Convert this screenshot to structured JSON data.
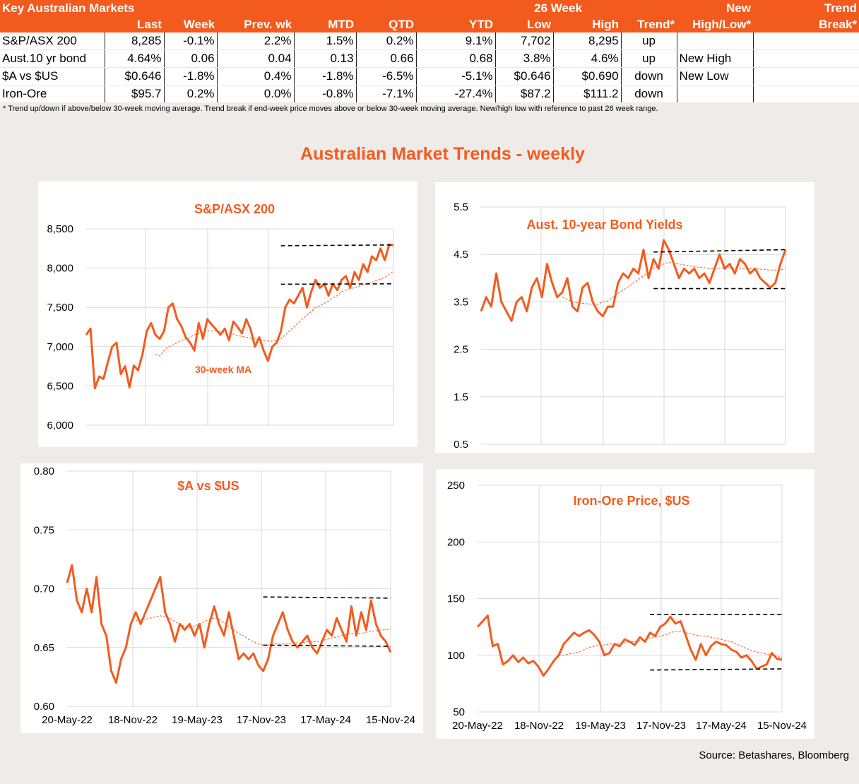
{
  "table": {
    "header1": {
      "title": "Key Australian Markets",
      "week26": "26 Week",
      "new": "New",
      "trend": "Trend"
    },
    "header2": [
      "Last",
      "Week",
      "Prev. wk",
      "MTD",
      "QTD",
      "YTD",
      "Low",
      "High",
      "Trend*",
      "High/Low*",
      "Break*"
    ],
    "rows": [
      {
        "name": "S&P/ASX 200",
        "last": "8,285",
        "week": "-0.1%",
        "prev": "2.2%",
        "mtd": "1.5%",
        "qtd": "0.2%",
        "ytd": "9.1%",
        "low": "7,702",
        "high": "8,295",
        "trend": "up",
        "hl": "",
        "brk": ""
      },
      {
        "name": "Aust.10 yr bond",
        "last": "4.64%",
        "week": "0.06",
        "prev": "0.04",
        "mtd": "0.13",
        "qtd": "0.66",
        "ytd": "0.68",
        "low": "3.8%",
        "high": "4.6%",
        "trend": "up",
        "hl": "New High",
        "brk": ""
      },
      {
        "name": "$A vs $US",
        "last": "$0.646",
        "week": "-1.8%",
        "prev": "0.4%",
        "mtd": "-1.8%",
        "qtd": "-6.5%",
        "ytd": "-5.1%",
        "low": "$0.646",
        "high": "$0.690",
        "trend": "down",
        "hl": "New Low",
        "brk": ""
      },
      {
        "name": "Iron-Ore",
        "last": "$95.7",
        "week": "0.2%",
        "prev": "0.0%",
        "mtd": "-0.8%",
        "qtd": "-7.1%",
        "ytd": "-27.4%",
        "low": "$87.2",
        "high": "$111.2",
        "trend": "down",
        "hl": "",
        "brk": ""
      }
    ],
    "footnote": "*  Trend up/down if above/below 30-week moving average. Trend break if end-week price moves above or below 30-week moving average.  New/high low with reference to past 26 week range."
  },
  "main_title": "Australian Market Trends - weekly",
  "source": "Source:  Betashares, Bloomberg",
  "colors": {
    "accent": "#f35b1e",
    "grid": "#d9d9d9",
    "band": "#000000"
  },
  "chart_data": [
    {
      "type": "line",
      "title": "S&P/ASX 200",
      "x_ticks": [],
      "ylim": [
        6000,
        8500
      ],
      "y_ticks": [
        "6,000",
        "6,500",
        "7,000",
        "7,500",
        "8,000",
        "8,500"
      ],
      "annotation": "30-week MA",
      "series": [
        {
          "style": "solid",
          "values": [
            7150,
            7230,
            6470,
            6620,
            6590,
            6800,
            7000,
            7050,
            6650,
            6750,
            6480,
            6760,
            6700,
            6900,
            7200,
            7300,
            7150,
            7100,
            7200,
            7500,
            7550,
            7350,
            7260,
            7120,
            7050,
            6950,
            7300,
            7100,
            7350,
            7280,
            7220,
            7150,
            7230,
            7080,
            7320,
            7250,
            7170,
            7350,
            7220,
            7000,
            7120,
            6950,
            6820,
            7000,
            7050,
            7200,
            7500,
            7600,
            7550,
            7650,
            7750,
            7500,
            7700,
            7850,
            7750,
            7800,
            7650,
            7800,
            7720,
            7850,
            7900,
            7750,
            7950,
            7850,
            8050,
            7950,
            8150,
            8100,
            8250,
            8100,
            8300,
            8290
          ]
        },
        {
          "style": "dashed",
          "values": [
            null,
            null,
            null,
            null,
            null,
            null,
            null,
            null,
            null,
            null,
            null,
            null,
            null,
            null,
            null,
            null,
            6900,
            6880,
            6950,
            7000,
            7020,
            7050,
            7080,
            7100,
            7120,
            7150,
            7170,
            7180,
            7200,
            7200,
            7200,
            7190,
            7180,
            7170,
            7160,
            7140,
            7130,
            7120,
            7110,
            7100,
            7090,
            7080,
            7070,
            7070,
            7080,
            7100,
            7150,
            7200,
            7250,
            7300,
            7350,
            7400,
            7450,
            7500,
            7520,
            7550,
            7580,
            7620,
            7650,
            7700,
            7720,
            7740,
            7750,
            7770,
            7790,
            7800,
            7820,
            7840,
            7860,
            7880,
            7920,
            7960
          ]
        }
      ],
      "bands": [
        [
          8285,
          8295
        ],
        [
          7795,
          7800
        ]
      ]
    },
    {
      "type": "line",
      "title": "Aust. 10-year Bond Yields",
      "ylim": [
        0.5,
        5.5
      ],
      "y_ticks": [
        "0.5",
        "1.5",
        "2.5",
        "3.5",
        "4.5",
        "5.5"
      ],
      "series": [
        {
          "style": "solid",
          "values": [
            3.3,
            3.6,
            3.4,
            4.1,
            3.5,
            3.3,
            3.1,
            3.5,
            3.6,
            3.3,
            3.8,
            4.0,
            3.6,
            4.3,
            3.9,
            3.6,
            3.7,
            4.0,
            3.4,
            3.3,
            3.8,
            3.9,
            3.5,
            3.3,
            3.2,
            3.4,
            3.4,
            3.9,
            4.1,
            4.0,
            4.2,
            4.1,
            4.6,
            4.0,
            4.4,
            4.2,
            4.8,
            4.6,
            4.3,
            4.0,
            4.2,
            4.1,
            4.2,
            4.0,
            4.1,
            3.9,
            4.2,
            4.5,
            4.2,
            4.3,
            4.1,
            4.4,
            4.3,
            4.1,
            4.2,
            4.0,
            3.9,
            3.8,
            3.9,
            4.3,
            4.6
          ]
        },
        {
          "style": "dashed",
          "values": [
            null,
            null,
            null,
            null,
            null,
            null,
            null,
            null,
            null,
            null,
            null,
            null,
            null,
            null,
            null,
            null,
            3.6,
            3.55,
            3.5,
            3.48,
            3.47,
            3.46,
            3.45,
            3.45,
            3.5,
            3.52,
            3.6,
            3.68,
            3.75,
            3.82,
            3.9,
            3.97,
            4.05,
            4.12,
            4.2,
            4.25,
            4.3,
            4.33,
            4.32,
            4.3,
            4.28,
            4.26,
            4.24,
            4.23,
            4.22,
            4.2,
            4.2,
            4.21,
            4.22,
            4.22,
            4.21,
            4.21,
            4.2,
            4.2,
            4.2,
            4.19,
            4.18,
            4.17,
            4.17,
            4.18,
            4.2
          ]
        }
      ],
      "bands": [
        [
          4.55,
          4.6
        ],
        [
          3.78,
          3.78
        ]
      ]
    },
    {
      "type": "line",
      "title": "$A vs $US",
      "x_ticks": [
        "20-May-22",
        "18-Nov-22",
        "19-May-23",
        "17-Nov-23",
        "17-May-24",
        "15-Nov-24"
      ],
      "ylim": [
        0.6,
        0.8
      ],
      "y_ticks": [
        "0.60",
        "0.65",
        "0.70",
        "0.75",
        "0.80"
      ],
      "series": [
        {
          "style": "solid",
          "values": [
            0.705,
            0.72,
            0.69,
            0.68,
            0.7,
            0.68,
            0.71,
            0.67,
            0.66,
            0.63,
            0.62,
            0.64,
            0.65,
            0.67,
            0.68,
            0.67,
            0.68,
            0.69,
            0.7,
            0.71,
            0.68,
            0.67,
            0.655,
            0.67,
            0.665,
            0.67,
            0.66,
            0.67,
            0.65,
            0.67,
            0.685,
            0.67,
            0.66,
            0.68,
            0.66,
            0.64,
            0.645,
            0.64,
            0.645,
            0.635,
            0.63,
            0.64,
            0.66,
            0.67,
            0.68,
            0.665,
            0.655,
            0.65,
            0.655,
            0.66,
            0.65,
            0.645,
            0.655,
            0.665,
            0.66,
            0.675,
            0.665,
            0.655,
            0.685,
            0.66,
            0.68,
            0.665,
            0.69,
            0.67,
            0.66,
            0.655,
            0.646
          ]
        },
        {
          "style": "dashed",
          "values": [
            null,
            null,
            null,
            null,
            null,
            null,
            null,
            null,
            null,
            null,
            null,
            null,
            null,
            null,
            0.673,
            0.674,
            0.674,
            0.675,
            0.676,
            0.677,
            0.676,
            0.675,
            0.672,
            0.67,
            0.668,
            0.667,
            0.668,
            0.67,
            0.672,
            0.674,
            0.675,
            0.674,
            0.671,
            0.668,
            0.665,
            0.662,
            0.66,
            0.657,
            0.655,
            0.653,
            0.652,
            0.652,
            0.653,
            0.653,
            0.653,
            0.653,
            0.654,
            0.654,
            0.654,
            0.655,
            0.655,
            0.655,
            0.656,
            0.657,
            0.658,
            0.659,
            0.66,
            0.661,
            0.662,
            0.662,
            0.662,
            0.663,
            0.664,
            0.664,
            0.665,
            0.665,
            0.666
          ]
        }
      ],
      "bands": [
        [
          0.693,
          0.692
        ],
        [
          0.652,
          0.651
        ]
      ]
    },
    {
      "type": "line",
      "title": "Iron-Ore Price, $US",
      "x_ticks": [
        "20-May-22",
        "18-Nov-22",
        "19-May-23",
        "17-Nov-23",
        "17-May-24",
        "15-Nov-24"
      ],
      "ylim": [
        50,
        250
      ],
      "y_ticks": [
        "50",
        "100",
        "150",
        "200",
        "250"
      ],
      "series": [
        {
          "style": "solid",
          "values": [
            125,
            130,
            135,
            108,
            110,
            92,
            95,
            100,
            94,
            98,
            93,
            95,
            90,
            82,
            88,
            95,
            100,
            110,
            115,
            120,
            117,
            120,
            122,
            118,
            112,
            100,
            102,
            110,
            108,
            114,
            112,
            109,
            116,
            112,
            120,
            117,
            125,
            128,
            134,
            128,
            130,
            118,
            105,
            96,
            110,
            100,
            108,
            112,
            110,
            109,
            105,
            103,
            98,
            100,
            95,
            88,
            90,
            92,
            102,
            97,
            96
          ]
        },
        {
          "style": "dashed",
          "values": [
            null,
            null,
            null,
            null,
            null,
            null,
            null,
            null,
            null,
            null,
            null,
            null,
            null,
            null,
            null,
            null,
            100,
            100,
            101,
            102,
            103,
            105,
            107,
            108,
            109,
            109,
            110,
            110,
            111,
            111,
            112,
            112,
            113,
            114,
            115,
            116,
            117,
            118,
            120,
            121,
            121,
            120,
            119,
            118,
            117,
            117,
            116,
            115,
            114,
            113,
            112,
            110,
            108,
            106,
            104,
            103,
            102,
            101,
            100,
            99,
            98
          ]
        }
      ],
      "bands": [
        [
          136,
          136
        ],
        [
          87,
          88
        ]
      ]
    }
  ]
}
